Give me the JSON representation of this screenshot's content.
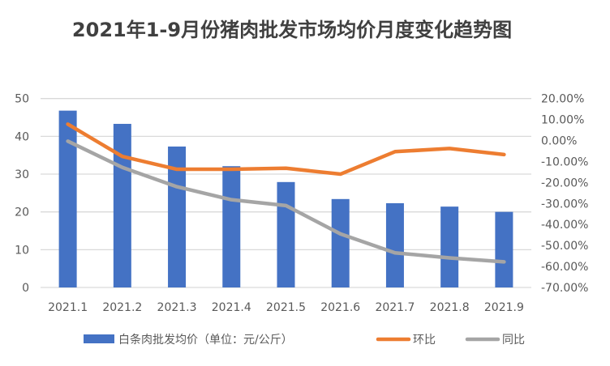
{
  "chart_data": {
    "type": "bar",
    "title": "2021年1-9月份猪肉批发市场均价月度变化趋势图",
    "categories": [
      "2021.1",
      "2021.2",
      "2021.3",
      "2021.4",
      "2021.5",
      "2021.6",
      "2021.7",
      "2021.8",
      "2021.9"
    ],
    "left_axis": {
      "ylim": [
        0,
        50
      ],
      "ticks": [
        "0",
        "10",
        "20",
        "30",
        "40",
        "50"
      ]
    },
    "right_axis": {
      "ylim": [
        -70,
        20
      ],
      "ticks": [
        "-70.00%",
        "-60.00%",
        "-50.00%",
        "-40.00%",
        "-30.00%",
        "-20.00%",
        "-10.00%",
        "0.00%",
        "10.00%",
        "20.00%"
      ]
    },
    "grid": true,
    "legend_position": "bottom",
    "series": [
      {
        "name": "白条肉批发均价（单位：元/公斤）",
        "type": "bar",
        "axis": "left",
        "color": "#4472C4",
        "values": [
          46.8,
          43.3,
          37.3,
          32.1,
          27.9,
          23.4,
          22.3,
          21.4,
          20.0
        ]
      },
      {
        "name": "环比",
        "type": "line",
        "axis": "right",
        "unit": "%",
        "color": "#ED7D31",
        "values": [
          7.8,
          -7.6,
          -13.7,
          -13.7,
          -13.2,
          -16.0,
          -5.3,
          -3.8,
          -6.7
        ]
      },
      {
        "name": "同比",
        "type": "line",
        "axis": "right",
        "unit": "%",
        "color": "#A5A5A5",
        "values": [
          -0.3,
          -12.8,
          -22.0,
          -28.2,
          -31.0,
          -44.5,
          -53.5,
          -55.9,
          -57.8
        ]
      }
    ]
  }
}
